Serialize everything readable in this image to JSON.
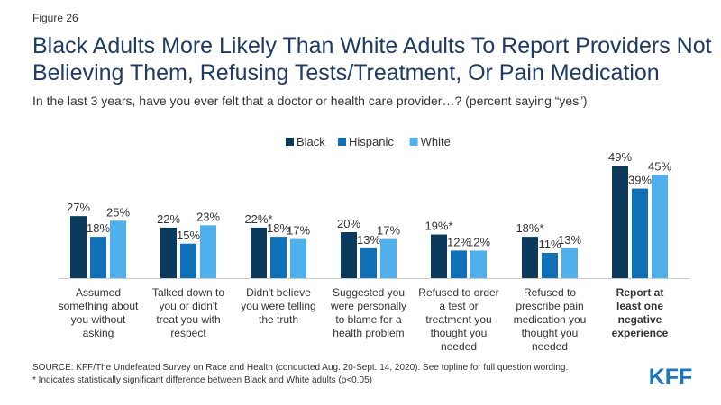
{
  "figure_label": "Figure 26",
  "title": "Black Adults More Likely Than White Adults To Report Providers Not Believing Them, Refusing Tests/Treatment, Or Pain Medication",
  "subtitle": "In the last 3 years, have you ever felt that a doctor or health care provider…? (percent saying “yes”)",
  "source": {
    "line1": "SOURCE: KFF/The Undefeated Survey on Race and Health (conducted Aug. 20-Sept. 14, 2020). See topline for full question wording.",
    "line2": "* Indicates statistically significant difference between Black and White adults (p<0.05)"
  },
  "logo": "KFF",
  "colors": {
    "black": "#0b3a5c",
    "hispanic": "#1071b8",
    "white": "#4fb0ec",
    "logo": "#1e76bd"
  },
  "chart_data": {
    "type": "bar",
    "categories": [
      [
        "Assumed",
        "something about",
        "you without",
        "asking"
      ],
      [
        "Talked down to",
        "you or didn't",
        "treat you with",
        "respect"
      ],
      [
        "Didn't believe",
        "you were telling",
        "the truth"
      ],
      [
        "Suggested you",
        "were personally",
        "to blame for a",
        "health problem"
      ],
      [
        "Refused to order",
        "a test or",
        "treatment you",
        "thought you",
        "needed"
      ],
      [
        "Refused to",
        "prescribe pain",
        "medication you",
        "thought you",
        "needed"
      ],
      [
        "Report at",
        "least one",
        "negative",
        "experience"
      ]
    ],
    "bold_categories": [
      6
    ],
    "series": [
      {
        "name": "Black",
        "values": [
          27,
          22,
          22,
          20,
          19,
          18,
          49
        ],
        "labels": [
          "27%",
          "22%",
          "22%*",
          "20%",
          "19%*",
          "18%*",
          "49%"
        ]
      },
      {
        "name": "Hispanic",
        "values": [
          18,
          15,
          18,
          13,
          12,
          11,
          39
        ],
        "labels": [
          "18%",
          "15%",
          "18%",
          "13%",
          "12%",
          "11%",
          "39%"
        ]
      },
      {
        "name": "White",
        "values": [
          25,
          23,
          17,
          17,
          12,
          13,
          45
        ],
        "labels": [
          "25%",
          "23%",
          "17%",
          "17%",
          "12%",
          "13%",
          "45%"
        ]
      }
    ],
    "ylim": [
      0,
      55
    ],
    "legend": "top-center",
    "grid": false
  }
}
